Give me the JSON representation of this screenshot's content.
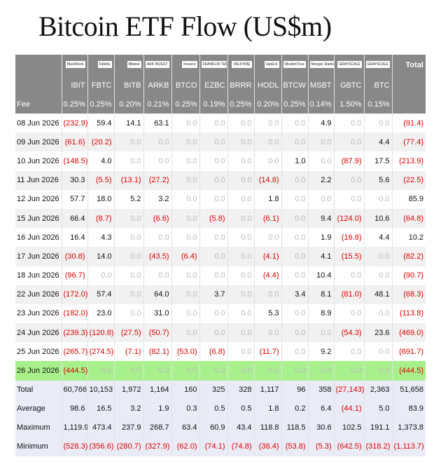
{
  "title": "Bitcoin ETF Flow (US$m)",
  "table": {
    "logos": [
      "BlackRock",
      "Fidelity",
      "Bitwise",
      "ARK INVEST",
      "Invesco",
      "FRANKLIN TEMPLETON",
      "VALKYRIE",
      "VanEck",
      "WisdomTree",
      "Morgan Stanley",
      "GRAYSCALE",
      "GRAYSCALE"
    ],
    "total_header": "Total",
    "columns": [
      "IBIT",
      "FBTC",
      "BITB",
      "ARKB",
      "BTCO",
      "EZBC",
      "BRRR",
      "HODL",
      "BTCW",
      "MSBT",
      "GBTC",
      "BTC"
    ],
    "fee_label": "Fee",
    "fees": [
      "0.25%",
      "0.25%",
      "0.20%",
      "0.21%",
      "0.25%",
      "0.19%",
      "0.25%",
      "0.20%",
      "0.25%",
      "0.14%",
      "1.50%",
      "0.15%"
    ],
    "rows": [
      {
        "label": "08 Jun 2026",
        "cells": [
          "(232.9)",
          "59.4",
          "14.1",
          "63.1",
          "0.0",
          "0.0",
          "0.0",
          "0.0",
          "0.0",
          "4.9",
          "0.0",
          "0.0",
          "(91.4)"
        ]
      },
      {
        "label": "09 Jun 2026",
        "cells": [
          "(61.6)",
          "(20.2)",
          "0.0",
          "0.0",
          "0.0",
          "0.0",
          "0.0",
          "0.0",
          "0.0",
          "0.0",
          "0.0",
          "4.4",
          "(77.4)"
        ]
      },
      {
        "label": "10 Jun 2026",
        "cells": [
          "(148.5)",
          "4.0",
          "0.0",
          "0.0",
          "0.0",
          "0.0",
          "0.0",
          "0.0",
          "1.0",
          "0.0",
          "(87.9)",
          "17.5",
          "(213.9)"
        ]
      },
      {
        "label": "11 Jun 2026",
        "cells": [
          "30.3",
          "(5.5)",
          "(13.1)",
          "(27.2)",
          "0.0",
          "0.0",
          "0.0",
          "(14.8)",
          "0.0",
          "2.2",
          "0.0",
          "5.6",
          "(22.5)"
        ]
      },
      {
        "label": "12 Jun 2026",
        "cells": [
          "57.7",
          "18.0",
          "5.2",
          "3.2",
          "0.0",
          "0.0",
          "0.0",
          "1.8",
          "0.0",
          "0.0",
          "0.0",
          "0.0",
          "85.9"
        ]
      },
      {
        "label": "15 Jun 2026",
        "cells": [
          "66.4",
          "(8.7)",
          "0.0",
          "(6.6)",
          "0.0",
          "(5.8)",
          "0.0",
          "(6.1)",
          "0.0",
          "9.4",
          "(124.0)",
          "10.6",
          "(64.8)"
        ]
      },
      {
        "label": "16 Jun 2026",
        "cells": [
          "16.4",
          "4.3",
          "0.0",
          "0.0",
          "0.0",
          "0.0",
          "0.0",
          "0.0",
          "0.0",
          "1.9",
          "(16.8)",
          "4.4",
          "10.2"
        ]
      },
      {
        "label": "17 Jun 2026",
        "cells": [
          "(30.8)",
          "14.0",
          "0.0",
          "(43.5)",
          "(6.4)",
          "0.0",
          "0.0",
          "(4.1)",
          "0.0",
          "4.1",
          "(15.5)",
          "0.0",
          "(82.2)"
        ]
      },
      {
        "label": "18 Jun 2026",
        "cells": [
          "(96.7)",
          "0.0",
          "0.0",
          "0.0",
          "0.0",
          "0.0",
          "0.0",
          "(4.4)",
          "0.0",
          "10.4",
          "0.0",
          "0.0",
          "(90.7)"
        ]
      },
      {
        "label": "22 Jun 2026",
        "cells": [
          "(172.0)",
          "57.4",
          "0.0",
          "64.0",
          "0.0",
          "3.7",
          "0.0",
          "0.0",
          "3.4",
          "8.1",
          "(81.0)",
          "48.1",
          "(68.3)"
        ]
      },
      {
        "label": "23 Jun 2026",
        "cells": [
          "(182.0)",
          "23.0",
          "0.0",
          "31.0",
          "0.0",
          "0.0",
          "0.0",
          "5.3",
          "0.0",
          "8.9",
          "0.0",
          "0.0",
          "(113.8)"
        ]
      },
      {
        "label": "24 Jun 2026",
        "cells": [
          "(239.3)",
          "(120.8)",
          "(27.5)",
          "(50.7)",
          "0.0",
          "0.0",
          "0.0",
          "0.0",
          "0.0",
          "0.0",
          "(54.3)",
          "23.6",
          "(469.0)"
        ]
      },
      {
        "label": "25 Jun 2026",
        "cells": [
          "(265.7)",
          "(274.5)",
          "(7.1)",
          "(82.1)",
          "(53.0)",
          "(6.8)",
          "0.0",
          "(11.7)",
          "0.0",
          "9.2",
          "0.0",
          "0.0",
          "(691.7)"
        ]
      },
      {
        "label": "26 Jun 2026",
        "highlighted": true,
        "cells": [
          "(444.5)",
          "0.0",
          "0.0",
          "0.0",
          "0.0",
          "0.0",
          "0.0",
          "0.0",
          "0.0",
          "0.0",
          "0.0",
          "0.0",
          "(444.5)"
        ]
      }
    ],
    "summary": [
      {
        "label": "Total",
        "cells": [
          "60,766",
          "10,153",
          "1,972",
          "1,164",
          "160",
          "325",
          "328",
          "1,117",
          "96",
          "358",
          "(27,143)",
          "2,363",
          "51,658"
        ]
      },
      {
        "label": "Average",
        "cells": [
          "98.6",
          "16.5",
          "3.2",
          "1.9",
          "0.3",
          "0.5",
          "0.5",
          "1.8",
          "0.2",
          "6.4",
          "(44.1)",
          "5.0",
          "83.9"
        ]
      },
      {
        "label": "Maximum",
        "cells": [
          "1,119.9",
          "473.4",
          "237.9",
          "268.7",
          "63.4",
          "60.9",
          "43.4",
          "118.8",
          "118.5",
          "30.6",
          "102.5",
          "191.1",
          "1,373.8"
        ]
      },
      {
        "label": "Minimum",
        "cells": [
          "(528.3)",
          "(356.6)",
          "(280.7)",
          "(327.9)",
          "(62.0)",
          "(74.1)",
          "(74.8)",
          "(38.4)",
          "(53.8)",
          "(5.3)",
          "(642.5)",
          "(318.2)",
          "(1,113.7)"
        ]
      }
    ]
  }
}
